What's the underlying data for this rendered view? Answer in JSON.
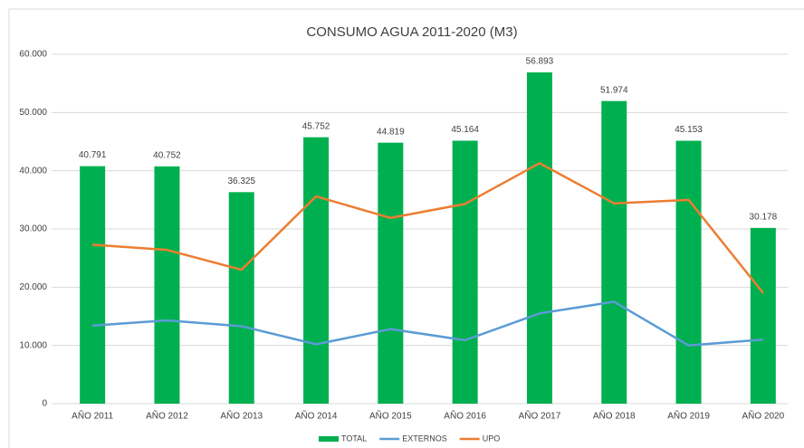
{
  "chart_data": {
    "type": "bar",
    "title": "CONSUMO AGUA 2011-2020 (M3)",
    "categories": [
      "AÑO 2011",
      "AÑO 2012",
      "AÑO 2013",
      "AÑO 2014",
      "AÑO 2015",
      "AÑO 2016",
      "AÑO 2017",
      "AÑO 2018",
      "AÑO 2019",
      "AÑO 2020"
    ],
    "series": [
      {
        "name": "TOTAL",
        "type": "bar",
        "color": "#00b050",
        "values": [
          40791,
          40752,
          36325,
          45752,
          44819,
          45164,
          56893,
          51974,
          45153,
          30178
        ],
        "value_labels": [
          "40.791",
          "40.752",
          "36.325",
          "45.752",
          "44.819",
          "45.164",
          "56.893",
          "51.974",
          "45.153",
          "30.178"
        ]
      },
      {
        "name": "EXTERNOS",
        "type": "line",
        "color": "#5b9bd5",
        "values": [
          13400,
          14300,
          13300,
          10200,
          12800,
          10900,
          15500,
          17500,
          10000,
          11000
        ]
      },
      {
        "name": "UPO",
        "type": "line",
        "color": "#ed7d31",
        "values": [
          27300,
          26400,
          23000,
          35600,
          31900,
          34300,
          41300,
          34400,
          35000,
          19000
        ]
      }
    ],
    "ylim": [
      0,
      60000
    ],
    "yticks": [
      0,
      {
        "value": 10000,
        "label": "10.000"
      },
      {
        "value": 20000,
        "label": "20.000"
      },
      {
        "value": 30000,
        "label": "30.000"
      },
      {
        "value": 40000,
        "label": "40.000"
      },
      {
        "value": 50000,
        "label": "50.000"
      },
      {
        "value": 60000,
        "label": "60.000"
      }
    ],
    "grid": true,
    "legend": "bottom"
  }
}
